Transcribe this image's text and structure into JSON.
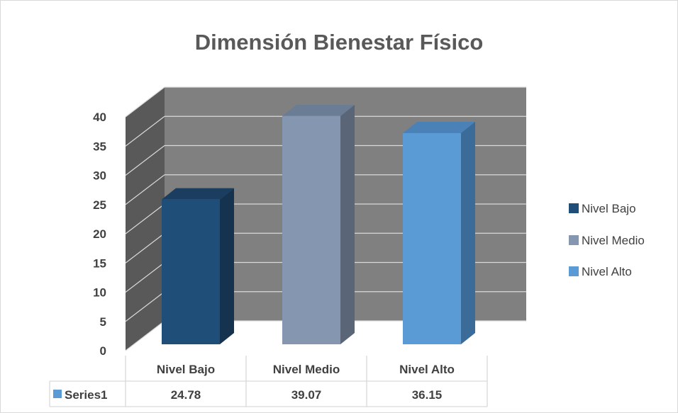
{
  "chart_data": {
    "type": "bar",
    "title": "Dimensión Bienestar Físico",
    "categories": [
      "Nivel Bajo",
      "Nivel Medio",
      "Nivel Alto"
    ],
    "series": [
      {
        "name": "Series1",
        "values": [
          24.78,
          39.07,
          36.15
        ]
      }
    ],
    "value_labels": [
      "24.78",
      "39.07",
      "36.15"
    ],
    "y_ticks": [
      "0",
      "5",
      "10",
      "15",
      "20",
      "25",
      "30",
      "35",
      "40"
    ],
    "ylim": [
      0,
      40
    ],
    "grid": true,
    "legend": {
      "position": "right",
      "entries": [
        "Nivel Bajo",
        "Nivel Medio",
        "Nivel Alto"
      ]
    },
    "data_table": true,
    "colors": {
      "bars": [
        "#1f4e79",
        "#8496b0",
        "#5b9bd5"
      ],
      "bar_sides": [
        "#15324f",
        "#5a6678",
        "#3b6b98"
      ],
      "bar_tops": [
        "#1a3d60",
        "#6b7c95",
        "#4a82b8"
      ],
      "series_key": "#5b9bd5",
      "back_wall": "#808080",
      "side_wall": "#595959",
      "gridline": "#d9d9d9",
      "text": "#404040"
    }
  }
}
